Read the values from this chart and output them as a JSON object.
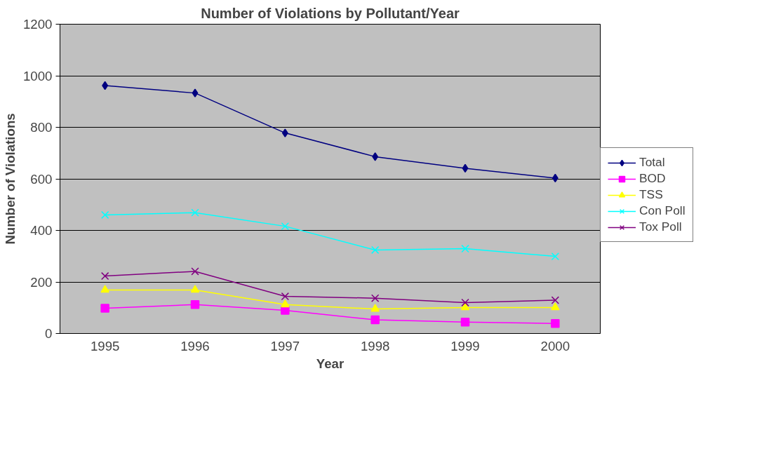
{
  "chart_data": {
    "type": "line",
    "title": "Number of Violations by Pollutant/Year",
    "xlabel": "Year",
    "ylabel": "Number of Violations",
    "categories": [
      "1995",
      "1996",
      "1997",
      "1998",
      "1999",
      "2000"
    ],
    "ylim": [
      0,
      1200
    ],
    "yticks": [
      0,
      200,
      400,
      600,
      800,
      1000,
      1200
    ],
    "grid": "y",
    "legend": "right",
    "series": [
      {
        "name": "Total",
        "color": "#000080",
        "marker": "diamond",
        "values": [
          962,
          933,
          778,
          686,
          641,
          603
        ]
      },
      {
        "name": "BOD",
        "color": "#ff00ff",
        "marker": "square",
        "values": [
          98,
          112,
          90,
          53,
          44,
          39
        ]
      },
      {
        "name": "TSS",
        "color": "#ffff00",
        "marker": "triangle",
        "values": [
          169,
          169,
          112,
          95,
          101,
          101
        ]
      },
      {
        "name": "Con Poll",
        "color": "#00ffff",
        "marker": "cross",
        "values": [
          460,
          469,
          416,
          324,
          329,
          299
        ]
      },
      {
        "name": "Tox Poll",
        "color": "#800080",
        "marker": "cross",
        "values": [
          223,
          241,
          144,
          137,
          120,
          129
        ]
      }
    ]
  }
}
